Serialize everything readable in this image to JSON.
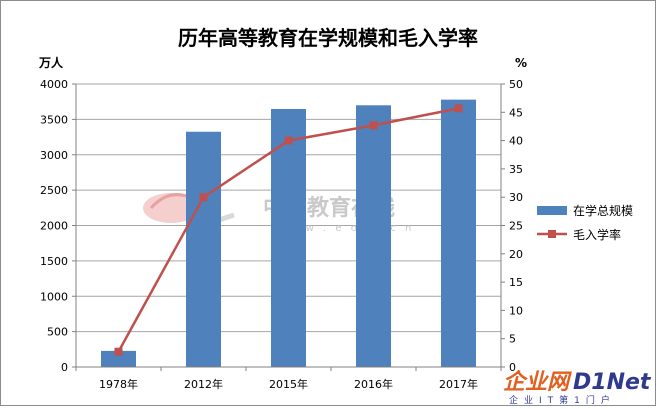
{
  "chart_data": {
    "type": "bar+line",
    "title": "历年高等教育在学规模和毛入学率",
    "categories": [
      "1978年",
      "2012年",
      "2015年",
      "2016年",
      "2017年"
    ],
    "series": [
      {
        "name": "在学总规模",
        "type": "bar",
        "axis": "left",
        "color": "#4f81bd",
        "values": [
          228,
          3325,
          3647,
          3699,
          3779
        ]
      },
      {
        "name": "毛入学率",
        "type": "line",
        "axis": "right",
        "color": "#c0504d",
        "values": [
          2.7,
          30.0,
          40.0,
          42.7,
          45.7
        ]
      }
    ],
    "left_axis": {
      "unit": "万人",
      "min": 0,
      "max": 4000,
      "step": 500
    },
    "right_axis": {
      "unit": "%",
      "min": 0,
      "max": 50,
      "step": 5
    },
    "grid": true,
    "legend": "right"
  },
  "watermark": {
    "text": "中国教育在线",
    "url": "w w w . e o l . c n"
  },
  "logo": {
    "part1": "企业网",
    "part2": "D1Net",
    "sub": "企业IT第1门户"
  }
}
